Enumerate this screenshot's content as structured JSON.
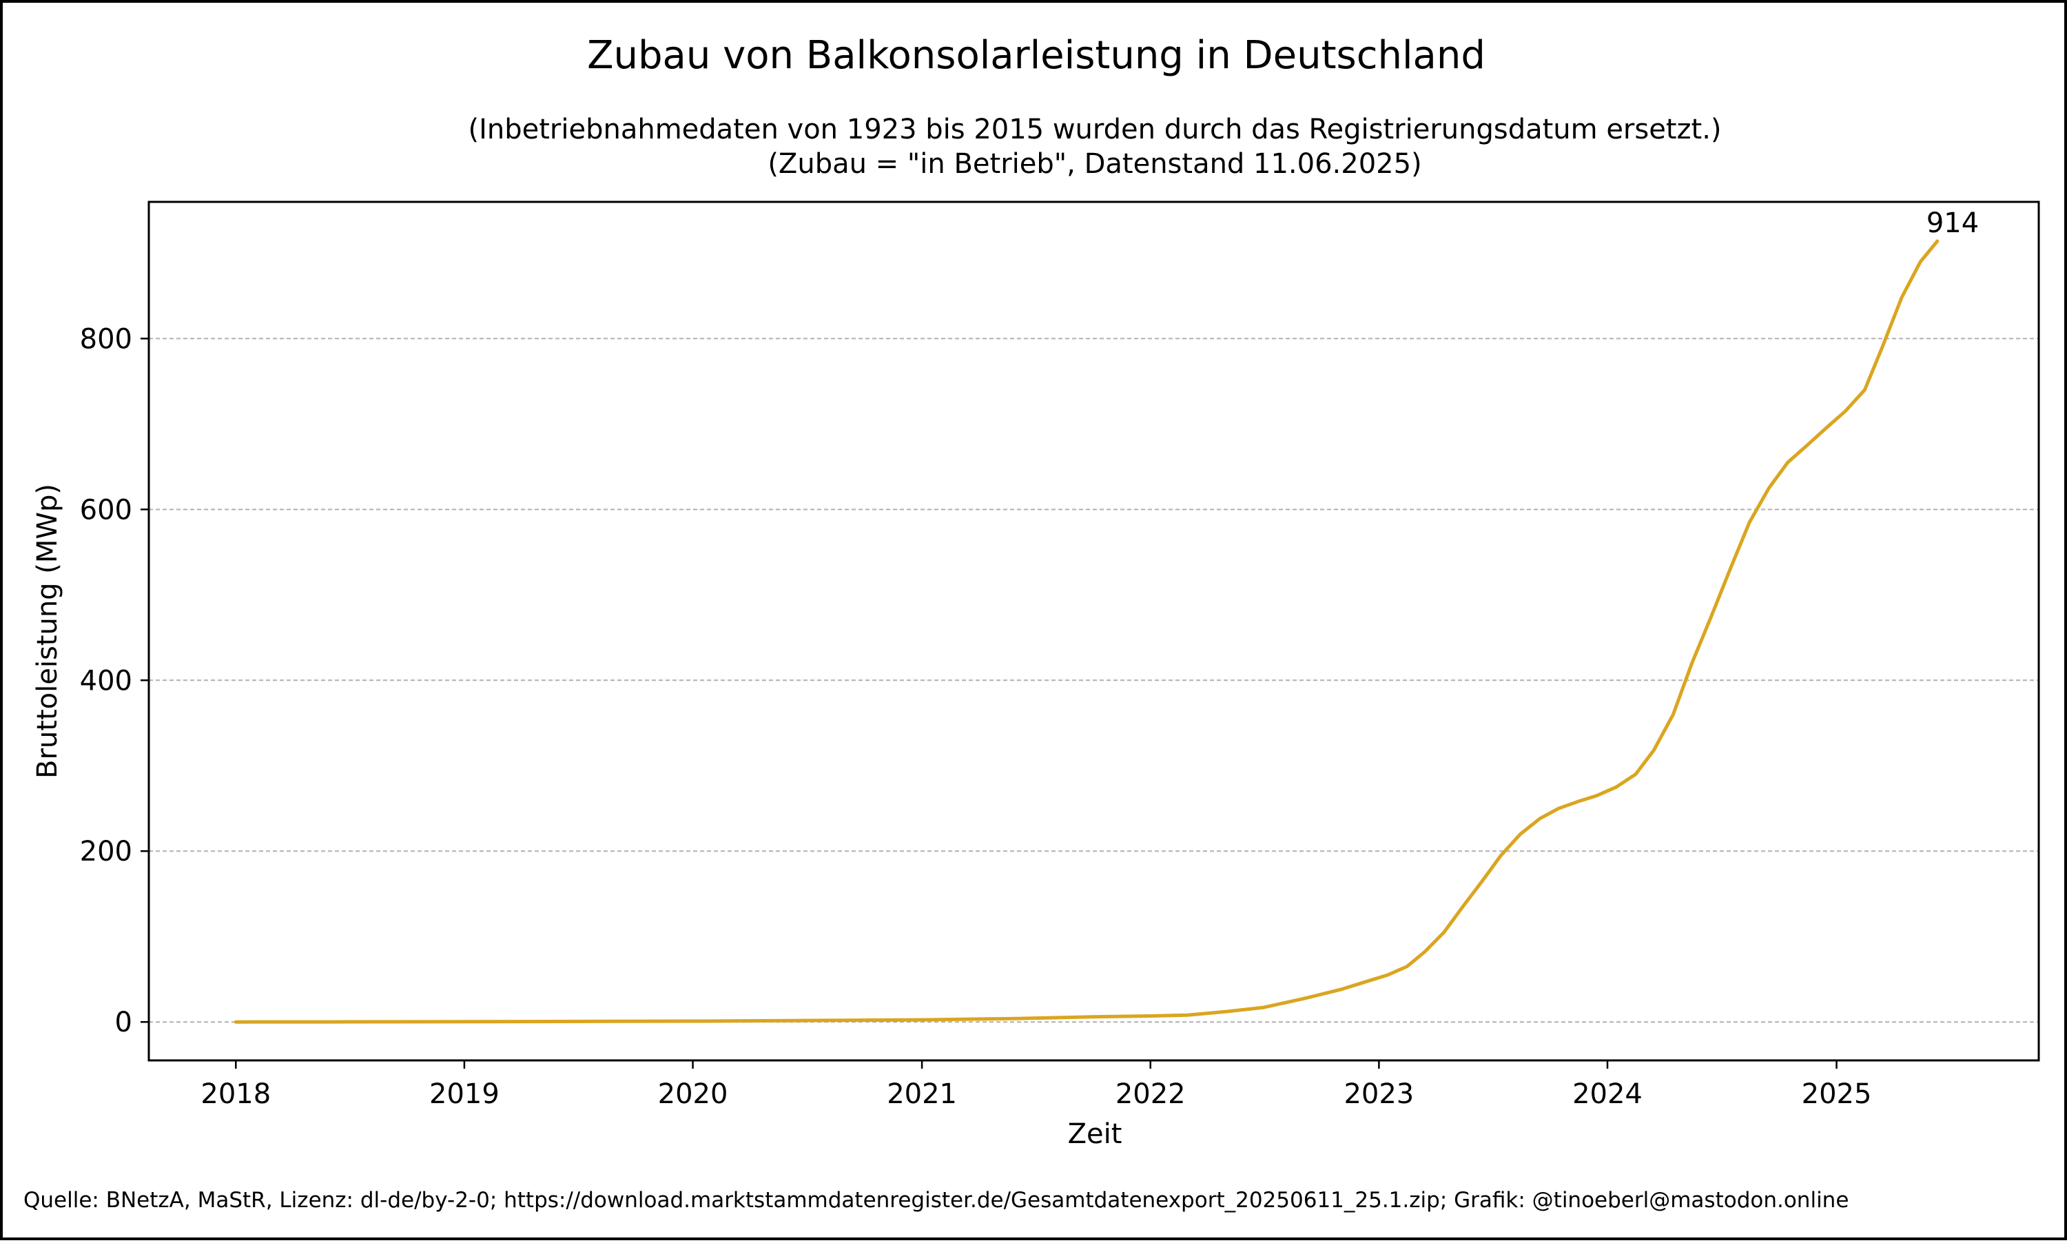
{
  "chart_data": {
    "type": "line",
    "title": "Zubau von Balkonsolarleistung in Deutschland",
    "subtitle_lines": [
      "(Inbetriebnahmedaten von 1923 bis 2015 wurden durch das Registrierungsdatum ersetzt.)",
      "(Zubau = \"in Betrieb\", Datenstand 11.06.2025)"
    ],
    "xlabel": "Zeit",
    "ylabel": "Bruttoleistung (MWp)",
    "x_ticks": [
      "2018",
      "2019",
      "2020",
      "2021",
      "2022",
      "2023",
      "2024",
      "2025"
    ],
    "y_ticks": [
      0,
      200,
      400,
      600,
      800
    ],
    "xlim": [
      "2017-08-15",
      "2025-11-20"
    ],
    "ylim": [
      -45,
      960
    ],
    "grid": "horizontal dashed",
    "line_color": "#DAA520",
    "series": [
      {
        "name": "",
        "points": [
          [
            "2018-01-01",
            0
          ],
          [
            "2018-06-01",
            0.1
          ],
          [
            "2019-01-01",
            0.3
          ],
          [
            "2019-06-01",
            0.6
          ],
          [
            "2020-01-01",
            1
          ],
          [
            "2020-06-01",
            1.5
          ],
          [
            "2021-01-01",
            2.5
          ],
          [
            "2021-06-01",
            4
          ],
          [
            "2021-10-01",
            6
          ],
          [
            "2022-01-01",
            7
          ],
          [
            "2022-03-01",
            8
          ],
          [
            "2022-05-01",
            12
          ],
          [
            "2022-07-01",
            17
          ],
          [
            "2022-09-01",
            27
          ],
          [
            "2022-11-01",
            38
          ],
          [
            "2022-12-15",
            48
          ],
          [
            "2023-01-15",
            55
          ],
          [
            "2023-02-15",
            65
          ],
          [
            "2023-03-15",
            82
          ],
          [
            "2023-04-15",
            105
          ],
          [
            "2023-05-15",
            135
          ],
          [
            "2023-06-15",
            165
          ],
          [
            "2023-07-15",
            195
          ],
          [
            "2023-08-15",
            220
          ],
          [
            "2023-09-15",
            238
          ],
          [
            "2023-10-15",
            250
          ],
          [
            "2023-11-15",
            258
          ],
          [
            "2023-12-15",
            265
          ],
          [
            "2024-01-15",
            275
          ],
          [
            "2024-02-15",
            290
          ],
          [
            "2024-03-15",
            318
          ],
          [
            "2024-04-15",
            360
          ],
          [
            "2024-05-15",
            420
          ],
          [
            "2024-06-15",
            475
          ],
          [
            "2024-07-15",
            530
          ],
          [
            "2024-08-15",
            585
          ],
          [
            "2024-09-15",
            625
          ],
          [
            "2024-10-15",
            655
          ],
          [
            "2024-11-15",
            675
          ],
          [
            "2024-12-15",
            695
          ],
          [
            "2025-01-15",
            715
          ],
          [
            "2025-02-15",
            740
          ],
          [
            "2025-03-15",
            790
          ],
          [
            "2025-04-15",
            848
          ],
          [
            "2025-05-15",
            890
          ],
          [
            "2025-06-11",
            914
          ]
        ]
      }
    ],
    "end_label": "914"
  },
  "footer": {
    "source": "Quelle: BNetzA, MaStR, Lizenz: dl-de/by-2-0; https://download.marktstammdatenregister.de/Gesamtdatenexport_20250611_25.1.zip; Grafik: @tinoeberl@mastodon.online"
  }
}
